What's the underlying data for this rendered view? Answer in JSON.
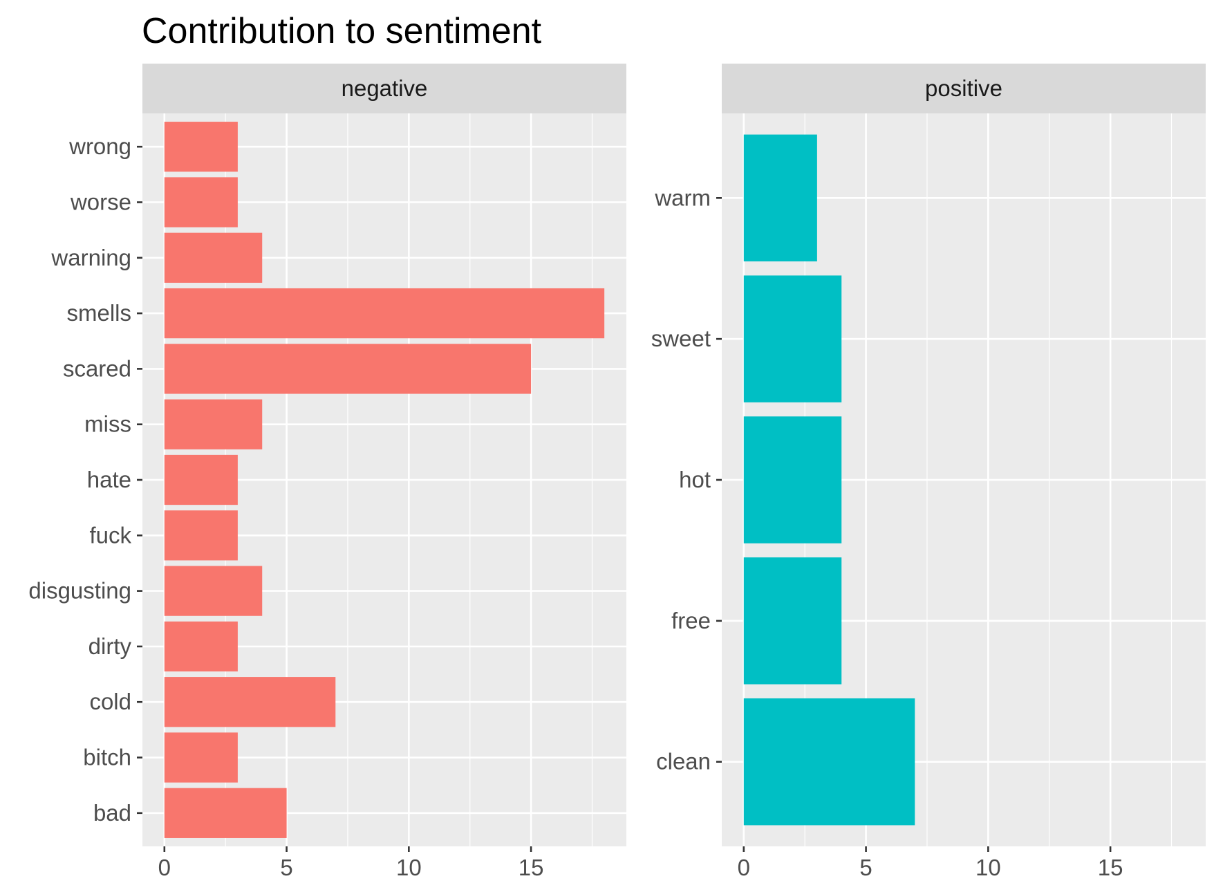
{
  "chart_data": {
    "type": "bar",
    "orientation": "horizontal",
    "title": "Contribution to sentiment",
    "xlabel": "",
    "ylabel": "",
    "grid": true,
    "xlim": [
      -0.9,
      18.9
    ],
    "x_ticks": [
      0,
      5,
      10,
      15
    ],
    "panels": [
      {
        "name": "negative",
        "color": "#F8766D",
        "categories": [
          "wrong",
          "worse",
          "warning",
          "smells",
          "scared",
          "miss",
          "hate",
          "fuck",
          "disgusting",
          "dirty",
          "cold",
          "bitch",
          "bad"
        ],
        "values": [
          3,
          3,
          4,
          18,
          15,
          4,
          3,
          3,
          4,
          3,
          7,
          3,
          5
        ]
      },
      {
        "name": "positive",
        "color": "#00BFC4",
        "categories": [
          "warm",
          "sweet",
          "hot",
          "free",
          "clean"
        ],
        "values": [
          3,
          4,
          4,
          4,
          7
        ]
      }
    ]
  },
  "style": {
    "panel_background": "#EBEBEB",
    "strip_background": "#D9D9D9",
    "grid_color": "#FFFFFF"
  }
}
